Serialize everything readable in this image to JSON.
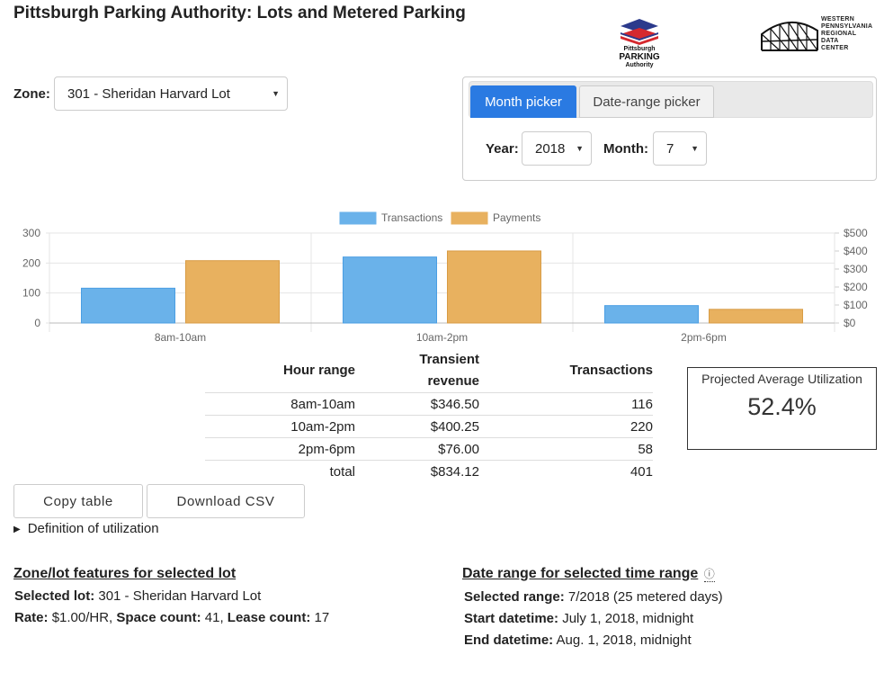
{
  "header": {
    "title": "Pittsburgh Parking Authority: Lots and Metered Parking"
  },
  "logos": {
    "ppa": {
      "line1": "Pittsburgh",
      "line2": "PARKING",
      "line3": "Authority"
    },
    "wprdc": {
      "line1": "WESTERN",
      "line2": "PENNSYLVANIA",
      "line3": "REGIONAL",
      "line4": "DATA",
      "line5": "CENTER"
    }
  },
  "zone": {
    "label": "Zone:",
    "selected": "301 - Sheridan Harvard Lot"
  },
  "picker": {
    "tabs": [
      {
        "label": "Month picker",
        "active": true
      },
      {
        "label": "Date-range picker",
        "active": false
      }
    ],
    "year_label": "Year:",
    "year_value": "2018",
    "month_label": "Month:",
    "month_value": "7"
  },
  "chart_data": {
    "type": "bar",
    "categories": [
      "8am-10am",
      "10am-2pm",
      "2pm-6pm"
    ],
    "series": [
      {
        "name": "Transactions",
        "values": [
          116,
          220,
          58
        ],
        "color": "#6ab2ea",
        "axis": "left"
      },
      {
        "name": "Payments",
        "values": [
          346.5,
          400.25,
          76.0
        ],
        "color": "#e8b15f",
        "axis": "right"
      }
    ],
    "y_left": {
      "ticks": [
        "0",
        "100",
        "200",
        "300"
      ],
      "range": [
        0,
        300
      ]
    },
    "y_right": {
      "ticks": [
        "$0",
        "$100",
        "$200",
        "$300",
        "$400",
        "$500"
      ],
      "range": [
        0,
        500
      ]
    },
    "legend": "top-center",
    "grid": true
  },
  "table": {
    "headers": [
      "Hour range",
      "Transient revenue",
      "Transactions"
    ],
    "header_revenue_line1": "Transient",
    "header_revenue_line2": "revenue",
    "rows": [
      [
        "8am-10am",
        "$346.50",
        "116"
      ],
      [
        "10am-2pm",
        "$400.25",
        "220"
      ],
      [
        "2pm-6pm",
        "$76.00",
        "58"
      ],
      [
        "total",
        "$834.12",
        "401"
      ]
    ]
  },
  "utilization": {
    "title": "Projected Average Utilization",
    "value": "52.4%"
  },
  "buttons": {
    "copy": "Copy table",
    "csv": "Download CSV"
  },
  "definition": {
    "icon": "triangle-right",
    "label": "Definition of utilization"
  },
  "features": {
    "title": "Zone/lot features for selected lot",
    "selected_lot_label": "Selected lot:",
    "selected_lot_value": "301 - Sheridan Harvard Lot",
    "rate_label": "Rate:",
    "rate_value": "$1.00/HR,",
    "space_label": "Space count:",
    "space_value": "41,",
    "lease_label": "Lease count:",
    "lease_value": "17"
  },
  "date_range": {
    "title": "Date range for selected time range",
    "info_icon": "ⓘ",
    "selected_label": "Selected range:",
    "selected_value": "7/2018 (25 metered days)",
    "start_label": "Start datetime:",
    "start_value": "July 1, 2018, midnight",
    "end_label": "End datetime:",
    "end_value": "Aug. 1, 2018, midnight"
  }
}
